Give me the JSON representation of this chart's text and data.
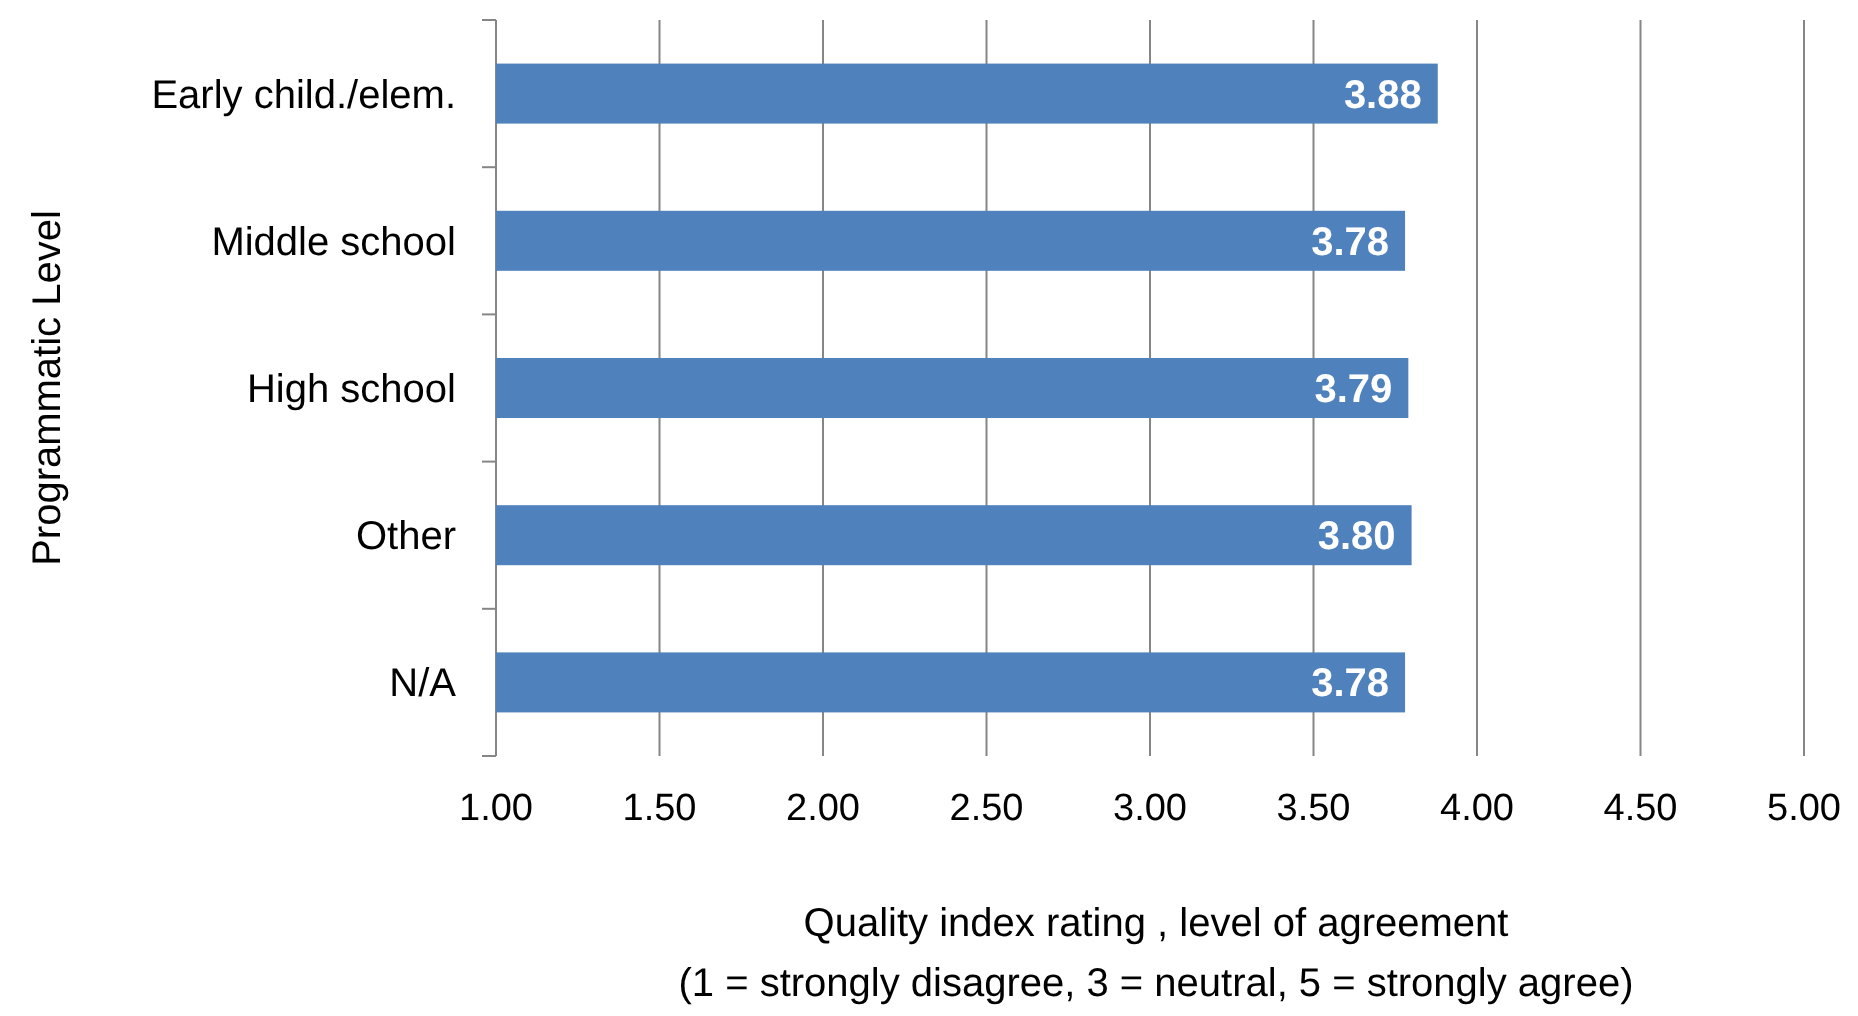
{
  "chart_data": {
    "type": "bar",
    "orientation": "horizontal",
    "ylabel": "Programmatic Level",
    "xlabel": "Quality index rating , level of agreement\n(1 = strongly disagree, 3 = neutral, 5 = strongly agree)",
    "categories": [
      "Early child./elem.",
      "Middle school",
      "High school",
      "Other",
      "N/A"
    ],
    "values": [
      3.88,
      3.78,
      3.79,
      3.8,
      3.78
    ],
    "value_labels": [
      "3.88",
      "3.78",
      "3.79",
      "3.80",
      "3.78"
    ],
    "color": "#4f81bd",
    "xlim": [
      1,
      5
    ],
    "xticks": [
      {
        "value": 1,
        "label": "1.00"
      },
      {
        "value": 1.5,
        "label": "1.50"
      },
      {
        "value": 2,
        "label": "2.00"
      },
      {
        "value": 2.5,
        "label": "2.50"
      },
      {
        "value": 3,
        "label": "3.00"
      },
      {
        "value": 3.5,
        "label": "3.50"
      },
      {
        "value": 4,
        "label": "4.00"
      },
      {
        "value": 4.5,
        "label": "4.50"
      },
      {
        "value": 5,
        "label": "5.00"
      }
    ],
    "grid": "x"
  }
}
